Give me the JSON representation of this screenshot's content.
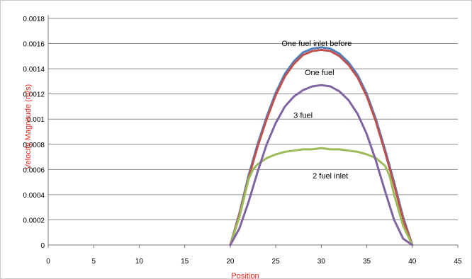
{
  "chart_data": {
    "type": "line",
    "title": "",
    "xlabel": "Position",
    "ylabel": "Velocity Magnitude (m/s)",
    "xlim": [
      0,
      45
    ],
    "ylim": [
      0,
      0.0018
    ],
    "x_ticks": [
      "0",
      "5",
      "10",
      "15",
      "20",
      "25",
      "30",
      "35",
      "40",
      "45"
    ],
    "y_ticks": [
      "0",
      "0.0002",
      "0.0004",
      "0.0006",
      "0.0008",
      "0.001",
      "0.0012",
      "0.0014",
      "0.0016",
      "0.0018"
    ],
    "grid": true,
    "legend": "none",
    "series": [
      {
        "color": "#4f81bd",
        "x": [
          20,
          21,
          22,
          23,
          24,
          25,
          26,
          27,
          28,
          29,
          30,
          31,
          32,
          33,
          34,
          35,
          36,
          37,
          38,
          39,
          40
        ],
        "y": [
          0,
          0.00025,
          0.00055,
          0.0008,
          0.00102,
          0.00121,
          0.00136,
          0.00146,
          0.00153,
          0.00156,
          0.00157,
          0.00156,
          0.00152,
          0.00145,
          0.00135,
          0.0012,
          0.001,
          0.00076,
          0.0005,
          0.00022,
          0
        ]
      },
      {
        "color": "#c0504d",
        "x": [
          20,
          21,
          22,
          23,
          24,
          25,
          26,
          27,
          28,
          29,
          30,
          31,
          32,
          33,
          34,
          35,
          36,
          37,
          38,
          39,
          40
        ],
        "y": [
          0,
          0.00024,
          0.00053,
          0.00078,
          0.001,
          0.00119,
          0.00134,
          0.00144,
          0.00151,
          0.00154,
          0.00155,
          0.00154,
          0.0015,
          0.00143,
          0.00133,
          0.00118,
          0.00098,
          0.00074,
          0.00048,
          0.0002,
          0
        ]
      },
      {
        "color": "#9bbb59",
        "x": [
          20,
          21,
          22,
          22.5,
          23,
          24,
          25,
          26,
          27,
          28,
          29,
          30,
          31,
          32,
          33,
          34,
          35,
          36,
          37,
          37.5,
          38,
          39,
          40
        ],
        "y": [
          0,
          0.00022,
          0.00052,
          0.0006,
          0.00064,
          0.00069,
          0.00072,
          0.00074,
          0.00075,
          0.00076,
          0.00076,
          0.00077,
          0.00076,
          0.00076,
          0.00075,
          0.00074,
          0.00072,
          0.00069,
          0.00063,
          0.00055,
          0.0004,
          0.00015,
          0
        ]
      },
      {
        "color": "#8064a2",
        "x": [
          20,
          21,
          22,
          23,
          24,
          25,
          26,
          27,
          28,
          29,
          30,
          31,
          32,
          33,
          34,
          35,
          36,
          37,
          38,
          39,
          40
        ],
        "y": [
          0,
          0.00013,
          0.00034,
          0.00058,
          0.0008,
          0.00097,
          0.0011,
          0.00118,
          0.00123,
          0.00126,
          0.00127,
          0.00126,
          0.00122,
          0.00115,
          0.00104,
          0.00088,
          0.00067,
          0.00043,
          0.0002,
          5e-05,
          0
        ]
      }
    ],
    "annotations": [
      {
        "text": "One fuel inlet before",
        "x": 29.5,
        "y": 0.00158
      },
      {
        "text": "One fuel",
        "x": 29.8,
        "y": 0.00135
      },
      {
        "text": "3 fuel",
        "x": 28,
        "y": 0.00101
      },
      {
        "text": "2 fuel inlet",
        "x": 31,
        "y": 0.00053
      }
    ]
  }
}
